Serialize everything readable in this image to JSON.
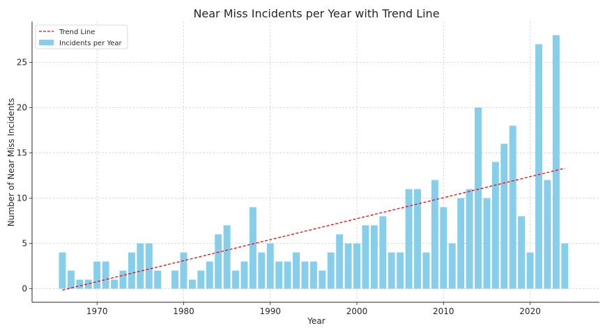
{
  "chart_data": {
    "type": "bar",
    "title": "Near Miss Incidents per Year with Trend Line",
    "xlabel": "Year",
    "ylabel": "Number of Near Miss Incidents",
    "xlim": [
      1962.5,
      2028
    ],
    "ylim": [
      -1.5,
      29.5
    ],
    "xticks": [
      1970,
      1980,
      1990,
      2000,
      2010,
      2020
    ],
    "yticks": [
      0,
      5,
      10,
      15,
      20,
      25
    ],
    "grid": true,
    "legend_position": "top-left",
    "series": [
      {
        "name": "Incidents per Year",
        "kind": "bar",
        "color": "#87CEEB",
        "x": [
          1966,
          1967,
          1968,
          1969,
          1970,
          1971,
          1972,
          1973,
          1974,
          1975,
          1976,
          1977,
          1979,
          1980,
          1981,
          1982,
          1983,
          1984,
          1985,
          1986,
          1987,
          1988,
          1989,
          1990,
          1991,
          1992,
          1993,
          1994,
          1995,
          1996,
          1997,
          1998,
          1999,
          2000,
          2001,
          2002,
          2003,
          2004,
          2005,
          2006,
          2007,
          2008,
          2009,
          2010,
          2011,
          2012,
          2013,
          2014,
          2015,
          2016,
          2017,
          2018,
          2019,
          2020,
          2021,
          2022,
          2023,
          2024
        ],
        "values": [
          4,
          2,
          1,
          1,
          3,
          3,
          1,
          2,
          4,
          5,
          5,
          2,
          2,
          4,
          1,
          2,
          3,
          6,
          7,
          2,
          3,
          9,
          4,
          5,
          3,
          3,
          4,
          3,
          3,
          2,
          4,
          6,
          5,
          5,
          7,
          7,
          8,
          4,
          4,
          11,
          11,
          4,
          12,
          9,
          5,
          10,
          11,
          20,
          10,
          14,
          16,
          18,
          8,
          4,
          27,
          12,
          28,
          5
        ]
      },
      {
        "name": "Trend Line",
        "kind": "line",
        "color": "#ff0000",
        "style": "dashed",
        "x": [
          1966,
          2024
        ],
        "values": [
          -0.15,
          13.3
        ]
      }
    ]
  }
}
